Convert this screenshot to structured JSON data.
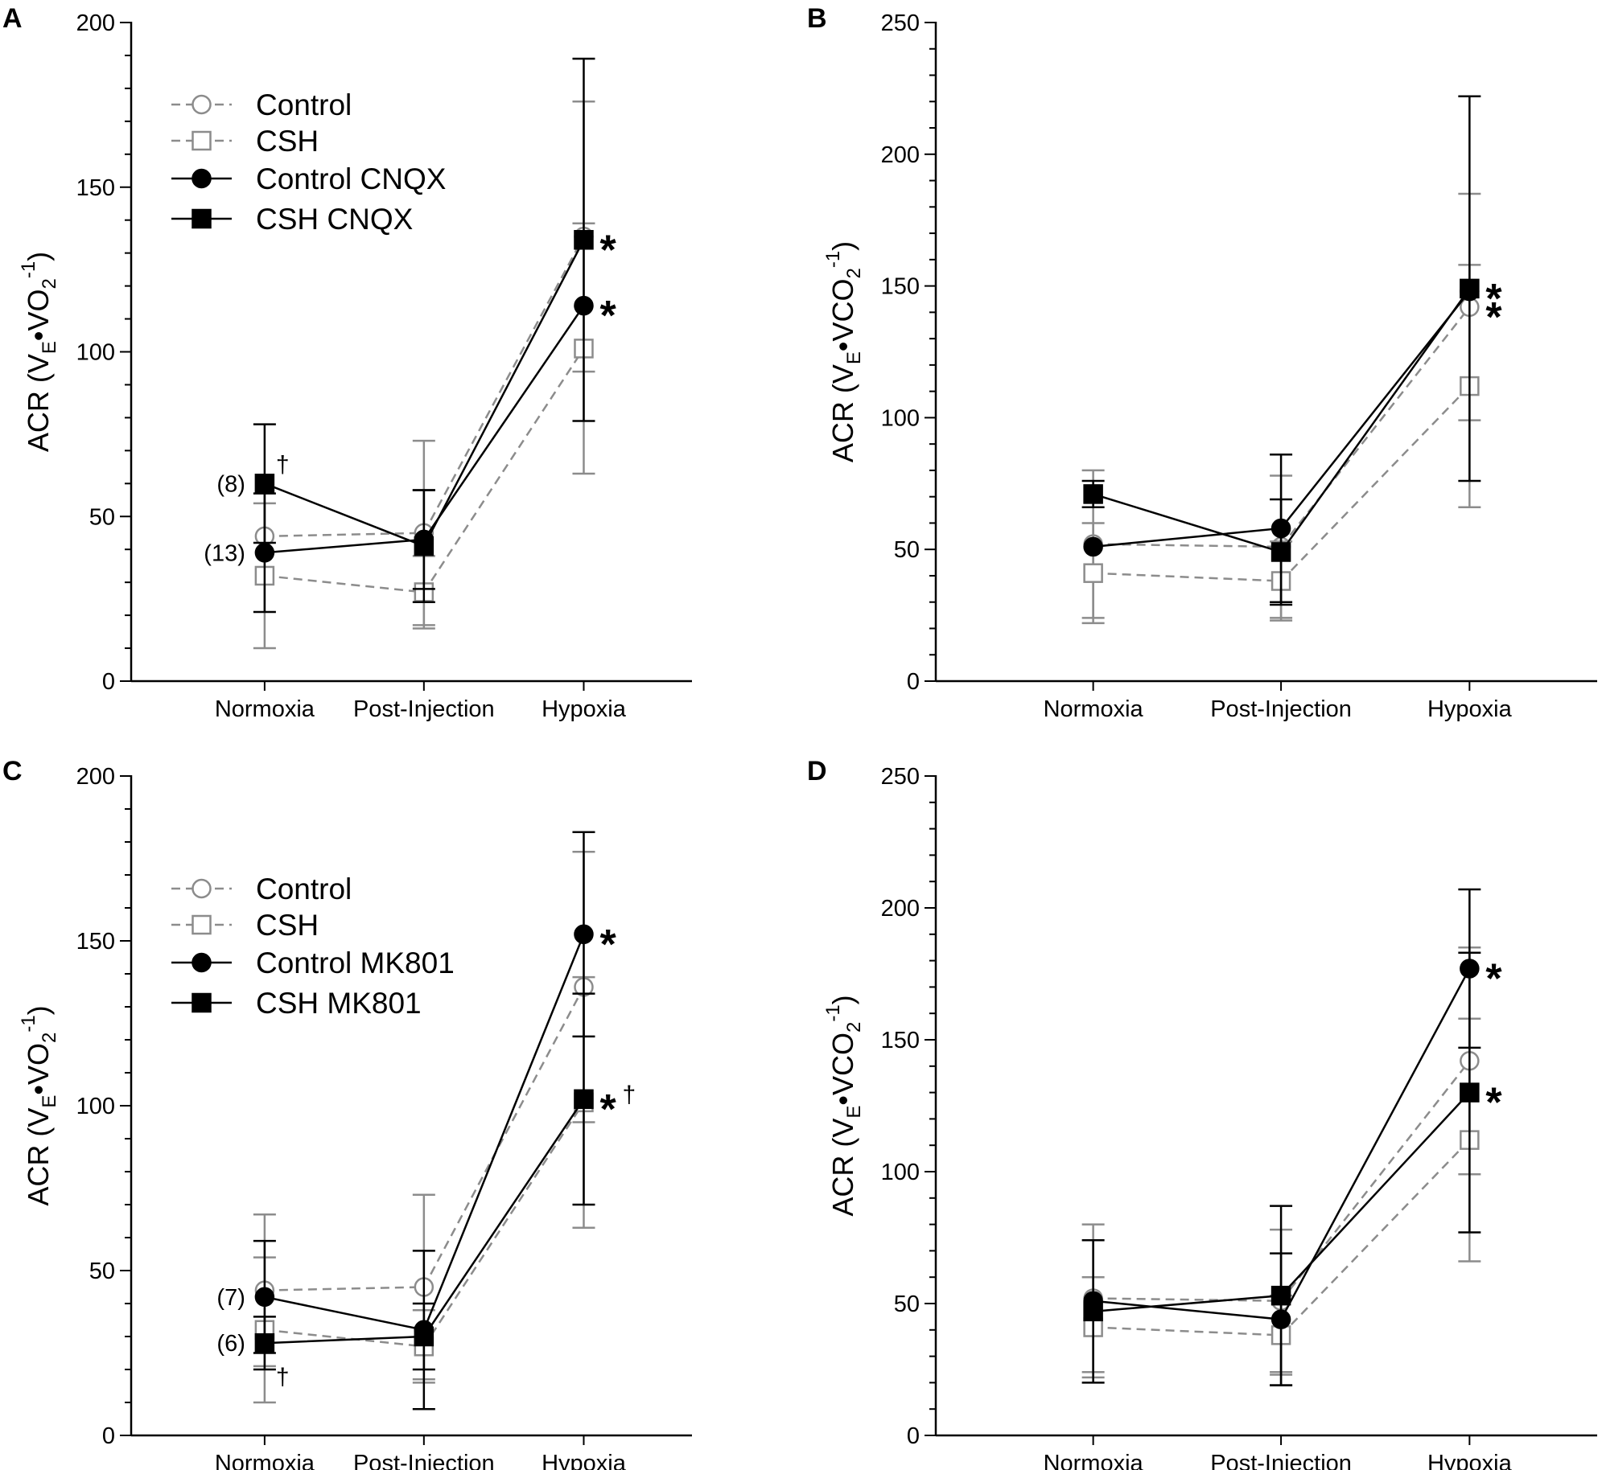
{
  "figure": {
    "series_styles": {
      "Control": {
        "color": "#8c8c8c",
        "dash": true,
        "marker": "circle-open"
      },
      "CSH": {
        "color": "#8c8c8c",
        "dash": true,
        "marker": "square-open"
      },
      "treated_circle": {
        "color": "#000000",
        "dash": false,
        "marker": "circle-filled"
      },
      "treated_square": {
        "color": "#000000",
        "dash": false,
        "marker": "square-filled"
      }
    }
  },
  "chart_data": [
    {
      "panel": "A",
      "type": "line",
      "ylabel": "ACR (VE•VO2-1)",
      "ylabel_parts": {
        "prefix": "ACR (V",
        "sub1": "E",
        "mid": "•VO",
        "sub2": "2",
        "sup": "-1",
        "suffix": ")"
      },
      "categories": [
        "Normoxia",
        "Post-Injection",
        "Hypoxia"
      ],
      "ylim": [
        0,
        200
      ],
      "yticks": [
        0,
        50,
        100,
        150,
        200
      ],
      "legend": {
        "placement": "top-left",
        "entries": [
          "Control",
          "CSH",
          "Control CNQX",
          "CSH CNQX"
        ]
      },
      "series": [
        {
          "name": "Control",
          "style": "Control",
          "values": [
            44,
            45,
            135
          ],
          "err": [
            null,
            28,
            41
          ]
        },
        {
          "name": "CSH",
          "style": "CSH",
          "values": [
            32,
            27,
            101
          ],
          "err": [
            22,
            11,
            38
          ]
        },
        {
          "name": "Control CNQX",
          "style": "treated_circle",
          "values": [
            39,
            43,
            114
          ],
          "err": [
            18,
            15,
            null
          ]
        },
        {
          "name": "CSH CNQX",
          "style": "treated_square",
          "values": [
            60,
            41,
            134
          ],
          "err": [
            18,
            17,
            55
          ]
        }
      ],
      "annotations": [
        {
          "text": "(8)",
          "kind": "n",
          "series": 3,
          "point": 0
        },
        {
          "text": "(13)",
          "kind": "n",
          "series": 2,
          "point": 0
        },
        {
          "text": "†",
          "kind": "dagger",
          "series": 3,
          "point": 0
        },
        {
          "text": "*",
          "kind": "star",
          "series": 3,
          "point": 2
        },
        {
          "text": "*",
          "kind": "star",
          "series": 2,
          "point": 2
        }
      ]
    },
    {
      "panel": "B",
      "type": "line",
      "ylabel": "ACR (VE•VCO2-1)",
      "ylabel_parts": {
        "prefix": "ACR (V",
        "sub1": "E",
        "mid": "•VCO",
        "sub2": "2",
        "sup": "-1",
        "suffix": ")"
      },
      "categories": [
        "Normoxia",
        "Post-Injection",
        "Hypoxia"
      ],
      "ylim": [
        0,
        250
      ],
      "yticks": [
        0,
        50,
        100,
        150,
        200,
        250
      ],
      "legend": null,
      "series": [
        {
          "name": "Control",
          "style": "Control",
          "values": [
            52,
            51,
            142
          ],
          "err": [
            28,
            27,
            43
          ]
        },
        {
          "name": "CSH",
          "style": "CSH",
          "values": [
            41,
            38,
            112
          ],
          "err": [
            19,
            15,
            46
          ]
        },
        {
          "name": "Control CNQX",
          "style": "treated_circle",
          "values": [
            51,
            58,
            148
          ],
          "err": [
            null,
            28,
            null
          ]
        },
        {
          "name": "CSH CNQX",
          "style": "treated_square",
          "values": [
            71,
            49,
            149
          ],
          "err": [
            5,
            20,
            73
          ]
        }
      ],
      "annotations": [
        {
          "text": "*",
          "kind": "star",
          "series": 3,
          "point": 2
        },
        {
          "text": "*",
          "kind": "star",
          "series": 0,
          "point": 2
        }
      ]
    },
    {
      "panel": "C",
      "type": "line",
      "ylabel": "ACR (VE•VO2-1)",
      "ylabel_parts": {
        "prefix": "ACR (V",
        "sub1": "E",
        "mid": "•VO",
        "sub2": "2",
        "sup": "-1",
        "suffix": ")"
      },
      "categories": [
        "Normoxia",
        "Post-Injection",
        "Hypoxia"
      ],
      "ylim": [
        0,
        200
      ],
      "yticks": [
        0,
        50,
        100,
        150,
        200
      ],
      "legend": {
        "placement": "top-left",
        "entries": [
          "Control",
          "CSH",
          "Control MK801",
          "CSH MK801"
        ]
      },
      "series": [
        {
          "name": "Control",
          "style": "Control",
          "values": [
            44,
            45,
            136
          ],
          "err": [
            23,
            28,
            41
          ]
        },
        {
          "name": "CSH",
          "style": "CSH",
          "values": [
            32,
            27,
            101
          ],
          "err": [
            22,
            11,
            38
          ]
        },
        {
          "name": "Control MK801",
          "style": "treated_circle",
          "values": [
            42,
            32,
            152
          ],
          "err": [
            17,
            24,
            31
          ]
        },
        {
          "name": "CSH MK801",
          "style": "treated_square",
          "values": [
            28,
            30,
            102
          ],
          "err": [
            8,
            10,
            32
          ]
        }
      ],
      "annotations": [
        {
          "text": "(7)",
          "kind": "n",
          "series": 2,
          "point": 0
        },
        {
          "text": "(6)",
          "kind": "n",
          "series": 3,
          "point": 0
        },
        {
          "text": "†",
          "kind": "dagger-below",
          "series": 3,
          "point": 0
        },
        {
          "text": "*",
          "kind": "star",
          "series": 2,
          "point": 2
        },
        {
          "text": "*",
          "kind": "star",
          "series": 3,
          "point": 2
        },
        {
          "text": "†",
          "kind": "dagger-after-star",
          "series": 3,
          "point": 2
        }
      ]
    },
    {
      "panel": "D",
      "type": "line",
      "ylabel": "ACR (VE•VCO2-1)",
      "ylabel_parts": {
        "prefix": "ACR (V",
        "sub1": "E",
        "mid": "•VCO",
        "sub2": "2",
        "sup": "-1",
        "suffix": ")"
      },
      "categories": [
        "Normoxia",
        "Post-Injection",
        "Hypoxia"
      ],
      "ylim": [
        0,
        250
      ],
      "yticks": [
        0,
        50,
        100,
        150,
        200,
        250
      ],
      "legend": null,
      "series": [
        {
          "name": "Control",
          "style": "Control",
          "values": [
            52,
            51,
            142
          ],
          "err": [
            28,
            27,
            43
          ]
        },
        {
          "name": "CSH",
          "style": "CSH",
          "values": [
            41,
            38,
            112
          ],
          "err": [
            19,
            15,
            46
          ]
        },
        {
          "name": "Control MK801",
          "style": "treated_circle",
          "values": [
            51,
            44,
            177
          ],
          "err": [
            null,
            25,
            30
          ]
        },
        {
          "name": "CSH MK801",
          "style": "treated_square",
          "values": [
            47,
            53,
            130
          ],
          "err": [
            27,
            34,
            53
          ]
        }
      ],
      "annotations": [
        {
          "text": "*",
          "kind": "star",
          "series": 2,
          "point": 2
        },
        {
          "text": "*",
          "kind": "star",
          "series": 3,
          "point": 2
        }
      ]
    }
  ]
}
